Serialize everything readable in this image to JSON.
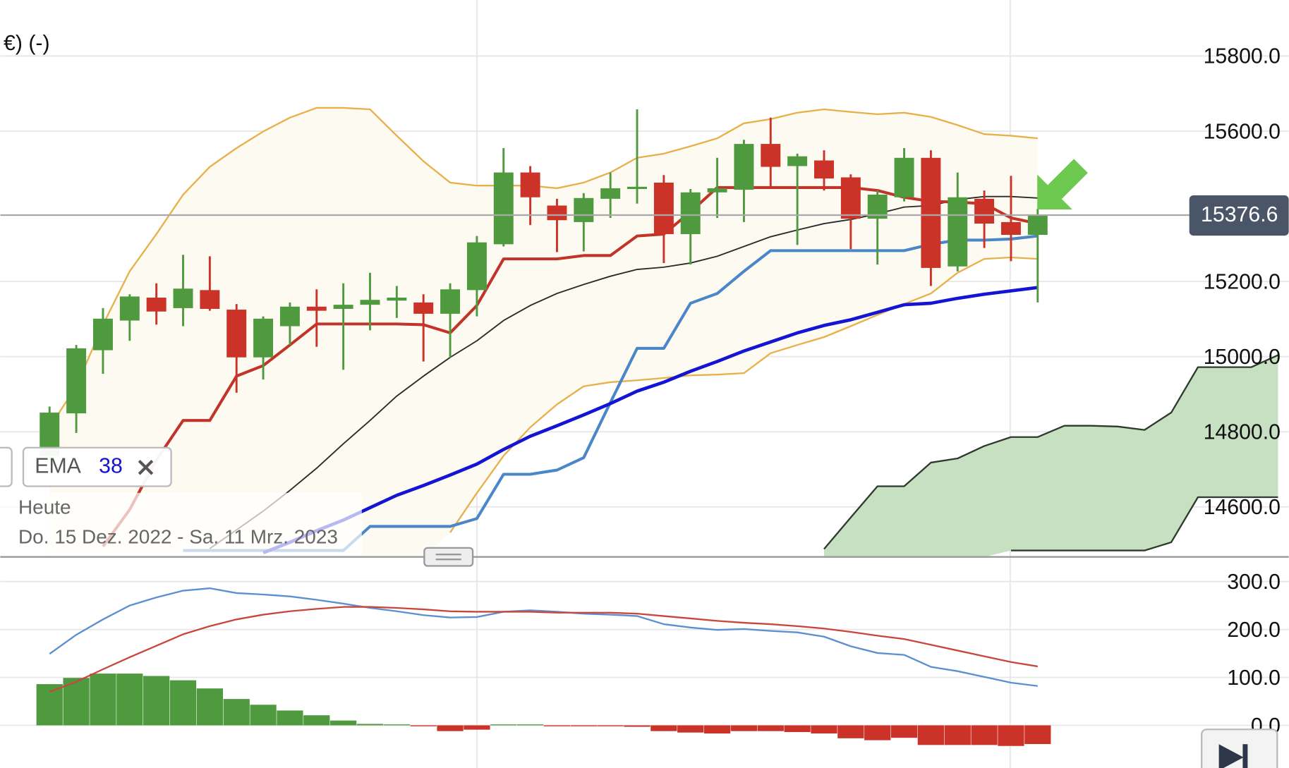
{
  "chart_data": [
    {
      "type": "candlestick",
      "title": "€) (-)",
      "categories": [
        null,
        null,
        null,
        null,
        null,
        null,
        null,
        null,
        null,
        null,
        null,
        null,
        null,
        null,
        null,
        null,
        null,
        null,
        null,
        null,
        null,
        null,
        null,
        null,
        null,
        null,
        null,
        null,
        null,
        null,
        null,
        null,
        null,
        null,
        null,
        null,
        null,
        null,
        null,
        null,
        null,
        null,
        null,
        null,
        null,
        null,
        null
      ],
      "open": [
        14735,
        14849,
        15017,
        15096,
        15157,
        15129,
        15177,
        15125,
        14998,
        15081,
        15133,
        15127,
        15138,
        15149,
        15144,
        15114,
        15177,
        15299,
        15490,
        15402,
        15358,
        15420,
        15446,
        15463,
        15326,
        15437,
        15444,
        15566,
        15507,
        15522,
        15477,
        15367,
        15424,
        15529,
        15240,
        15420,
        15358,
        15324,
        null,
        null,
        null,
        null,
        null,
        null,
        null,
        null,
        null
      ],
      "high": [
        14867,
        15031,
        15129,
        15166,
        15195,
        15271,
        15267,
        15140,
        15107,
        15144,
        15179,
        15195,
        15223,
        15188,
        15166,
        15195,
        15321,
        15555,
        15507,
        15420,
        15435,
        15490,
        15658,
        15483,
        15446,
        15529,
        15577,
        15636,
        15540,
        15549,
        15485,
        15442,
        15555,
        15549,
        15490,
        15442,
        15481,
        15393,
        null,
        null,
        null,
        null,
        null,
        null,
        null,
        null,
        null
      ],
      "low": [
        14725,
        14797,
        14954,
        15042,
        15085,
        15081,
        15122,
        14904,
        14939,
        15031,
        15026,
        14965,
        15070,
        15103,
        14987,
        14998,
        15107,
        15293,
        15350,
        15278,
        15280,
        15369,
        15407,
        15249,
        15245,
        15369,
        15358,
        15452,
        15297,
        15442,
        15286,
        15245,
        15413,
        15188,
        15227,
        15289,
        15254,
        15144,
        null,
        null,
        null,
        null,
        null,
        null,
        null,
        null,
        null
      ],
      "close": [
        14851,
        15022,
        15101,
        15160,
        15120,
        15181,
        15127,
        14998,
        15101,
        15133,
        15122,
        15138,
        15151,
        15157,
        15114,
        15179,
        15304,
        15490,
        15424,
        15363,
        15422,
        15448,
        15452,
        15326,
        15437,
        15448,
        15566,
        15505,
        15533,
        15474,
        15367,
        15431,
        15529,
        15236,
        15424,
        15354,
        15324,
        15377,
        null,
        null,
        null,
        null,
        null,
        null,
        null,
        null,
        null
      ],
      "up_color": "#4f9a3f",
      "down_color": "#cc3328",
      "bands": [
        {
          "color": "#e8b04a",
          "fill": "#fdfbf1",
          "upper": [
            14812,
            14921,
            15085,
            15227,
            15326,
            15431,
            15505,
            15555,
            15599,
            15636,
            15662,
            15662,
            15658,
            15588,
            15520,
            15463,
            15455,
            15455,
            15455,
            15448,
            15463,
            15490,
            15529,
            15540,
            15560,
            15581,
            15621,
            15632,
            15649,
            15658,
            15651,
            15645,
            15649,
            15638,
            15616,
            15592,
            15588,
            15581,
            null,
            null,
            null,
            null,
            null,
            null,
            null,
            null,
            null
          ],
          "lower": [
            null,
            null,
            null,
            null,
            null,
            null,
            null,
            null,
            null,
            null,
            null,
            null,
            null,
            null,
            null,
            14532,
            14637,
            14736,
            14812,
            14873,
            14921,
            14932,
            14937,
            14943,
            14950,
            14952,
            14956,
            15009,
            15031,
            15052,
            15081,
            15111,
            15140,
            15168,
            15223,
            15260,
            15264,
            15260,
            null,
            null,
            null,
            null,
            null,
            null,
            null,
            null,
            null
          ]
        },
        {
          "color": "#2f3a2f",
          "fill": "#c8e0c2",
          "upper": [
            null,
            null,
            null,
            null,
            null,
            null,
            null,
            null,
            null,
            null,
            null,
            null,
            null,
            null,
            null,
            null,
            null,
            null,
            null,
            null,
            null,
            null,
            null,
            null,
            null,
            null,
            null,
            null,
            null,
            14488,
            14572,
            14655,
            14655,
            14718,
            14729,
            14762,
            14786,
            14786,
            14816,
            14816,
            14814,
            14805,
            14851,
            14972,
            14972,
            14972,
            15004
          ],
          "lower": [
            null,
            null,
            null,
            null,
            null,
            null,
            null,
            null,
            null,
            null,
            null,
            null,
            null,
            null,
            null,
            null,
            null,
            null,
            null,
            null,
            null,
            null,
            null,
            null,
            null,
            null,
            null,
            null,
            null,
            null,
            null,
            null,
            null,
            null,
            null,
            null,
            14484,
            14484,
            14484,
            14484,
            14484,
            14484,
            14506,
            14626,
            14626,
            14626,
            14626
          ]
        }
      ],
      "lines": [
        {
          "color": "#2a2a2a",
          "values": [
            null,
            null,
            null,
            null,
            null,
            null,
            14489,
            14539,
            14589,
            14644,
            14703,
            14768,
            14830,
            14895,
            14948,
            14998,
            15042,
            15096,
            15136,
            15168,
            15192,
            15214,
            15232,
            15238,
            15249,
            15267,
            15293,
            15319,
            15337,
            15354,
            15365,
            15380,
            15398,
            15402,
            15418,
            15426,
            15426,
            15422,
            null,
            null,
            null,
            null,
            null,
            null,
            null,
            null,
            null
          ]
        },
        {
          "color": "#c0342a",
          "values": [
            null,
            null,
            14495,
            14593,
            14725,
            14830,
            14830,
            14948,
            14976,
            15031,
            15087,
            15087,
            15087,
            15087,
            15085,
            15063,
            15136,
            15260,
            15260,
            15260,
            15269,
            15269,
            15321,
            15326,
            15385,
            15450,
            15450,
            15450,
            15450,
            15450,
            15450,
            15442,
            15424,
            15413,
            15411,
            15407,
            15369,
            15354,
            null,
            null,
            null,
            null,
            null,
            null,
            null,
            null,
            null
          ]
        },
        {
          "color": "#4a86c8",
          "values": [
            null,
            null,
            null,
            null,
            null,
            14484,
            14484,
            14484,
            14484,
            14484,
            14484,
            14484,
            14548,
            14548,
            14548,
            14548,
            14569,
            14687,
            14687,
            14698,
            14731,
            14878,
            15022,
            15022,
            15142,
            15168,
            15227,
            15282,
            15282,
            15282,
            15282,
            15282,
            15282,
            15299,
            15310,
            15310,
            15313,
            15321,
            null,
            null,
            null,
            null,
            null,
            null,
            null,
            null,
            null
          ]
        },
        {
          "name": "EMA",
          "period": 38,
          "color": "#1414d4",
          "values": [
            null,
            null,
            null,
            null,
            null,
            null,
            null,
            null,
            14478,
            14506,
            14537,
            14565,
            14598,
            14631,
            14657,
            14685,
            14714,
            14753,
            14788,
            14816,
            14845,
            14875,
            14908,
            14932,
            14961,
            14987,
            15015,
            15039,
            15063,
            15083,
            15098,
            15118,
            15138,
            15142,
            15155,
            15166,
            15175,
            15184,
            null,
            null,
            null,
            null,
            null,
            null,
            null,
            null,
            null
          ]
        }
      ],
      "last_price": 15376.6,
      "ylim": [
        14467,
        15949
      ],
      "yticks": [
        {
          "value": 14600,
          "label": "14600.0"
        },
        {
          "value": 14800,
          "label": "14800.0"
        },
        {
          "value": 15000,
          "label": "15000.0"
        },
        {
          "value": 15200,
          "label": "15200.0"
        },
        {
          "value": 15600,
          "label": "15600.0"
        },
        {
          "value": 15800,
          "label": "15800.0"
        }
      ],
      "grid": true,
      "period_label": "Heute",
      "range_label": "Do. 15 Dez. 2022 - Sa. 11 Mrz. 2023"
    },
    {
      "type": "macd",
      "categories": [
        null,
        null,
        null,
        null,
        null,
        null,
        null,
        null,
        null,
        null,
        null,
        null,
        null,
        null,
        null,
        null,
        null,
        null,
        null,
        null,
        null,
        null,
        null,
        null,
        null,
        null,
        null,
        null,
        null,
        null,
        null,
        null,
        null,
        null,
        null,
        null,
        null,
        null
      ],
      "histogram": [
        86,
        99,
        108,
        108,
        103,
        94,
        77,
        55,
        43,
        31,
        21,
        10,
        3,
        2,
        -2,
        -12,
        -9,
        2,
        2,
        -2,
        -2,
        -2,
        -3,
        -12,
        -15,
        -17,
        -12,
        -12,
        -14,
        -17,
        -27,
        -31,
        -26,
        -41,
        -41,
        -41,
        -43,
        -39
      ],
      "up_color": "#4f9a3f",
      "down_color": "#cc3328",
      "series": [
        {
          "color": "#5b8fd0",
          "values": [
            149,
            189,
            221,
            250,
            267,
            281,
            286,
            276,
            273,
            269,
            262,
            254,
            245,
            238,
            230,
            225,
            226,
            237,
            240,
            237,
            233,
            231,
            228,
            211,
            204,
            199,
            201,
            197,
            194,
            185,
            165,
            151,
            147,
            122,
            113,
            101,
            89,
            82
          ]
        },
        {
          "color": "#c9463d",
          "values": [
            70,
            91,
            117,
            142,
            166,
            190,
            207,
            221,
            231,
            238,
            243,
            247,
            247,
            245,
            242,
            238,
            237,
            237,
            237,
            235,
            235,
            235,
            233,
            228,
            223,
            218,
            214,
            211,
            207,
            202,
            195,
            187,
            180,
            168,
            156,
            144,
            132,
            123
          ]
        }
      ],
      "ylim": [
        -89,
        348
      ],
      "yticks": [
        {
          "value": 0,
          "label": "0.0"
        },
        {
          "value": 100,
          "label": "100.0"
        },
        {
          "value": 200,
          "label": "200.0"
        },
        {
          "value": 300,
          "label": "300.0"
        }
      ],
      "grid": true
    }
  ]
}
